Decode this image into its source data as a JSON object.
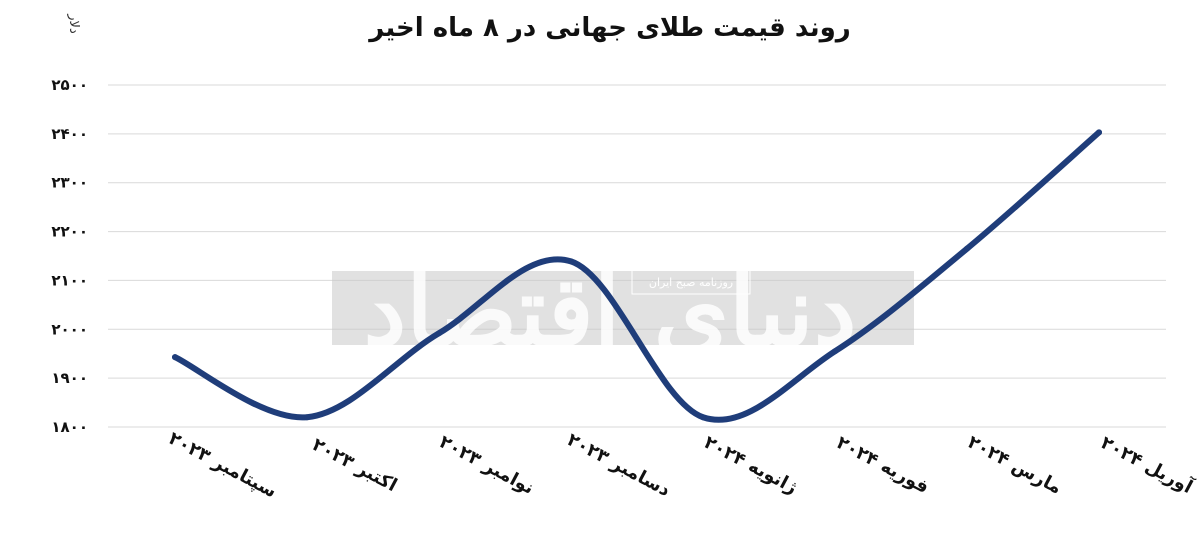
{
  "chart_data": {
    "type": "line",
    "title": "روند قیمت طلای جهانی در ۸ ماه اخیر",
    "ylabel": "دلار",
    "xlabel": "",
    "ylim": [
      1800,
      2500
    ],
    "yticks": [
      1800,
      1900,
      2000,
      2100,
      2200,
      2300,
      2400,
      2500
    ],
    "ytick_labels": [
      "۱۸۰۰",
      "۱۹۰۰",
      "۲۰۰۰",
      "۲۱۰۰",
      "۲۲۰۰",
      "۲۳۰۰",
      "۲۴۰۰",
      "۲۵۰۰"
    ],
    "categories": [
      "سپتامبر ۲۰۲۳",
      "اکتبر ۲۰۲۳",
      "نوامبر ۲۰۲۳",
      "دسامبر ۲۰۲۳",
      "ژانویه ۲۰۲۴",
      "فوریه ۲۰۲۴",
      "مارس ۲۰۲۴",
      "آوریل ۲۰۲۴"
    ],
    "series": [
      {
        "values": [
          1943,
          1820,
          1992,
          2139,
          1820,
          1955,
          2165,
          2403
        ],
        "color": "#1f3d7a"
      }
    ],
    "grid": true,
    "legend": "none"
  },
  "watermark": {
    "text": "دنیای اقتصاد",
    "subtext": "روزنامه صبح ایران"
  }
}
